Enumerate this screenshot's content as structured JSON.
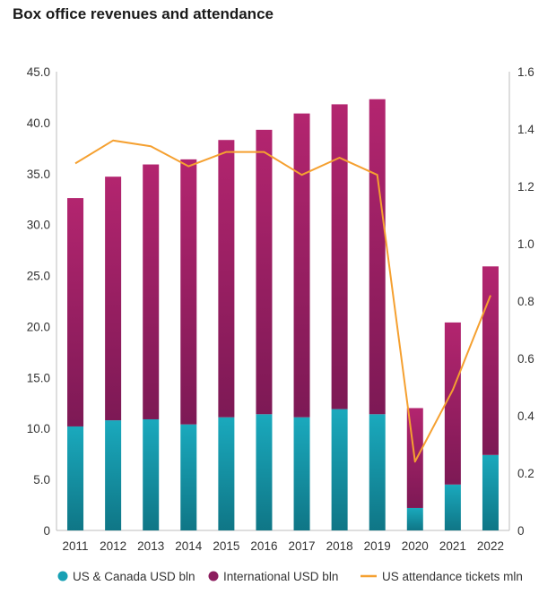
{
  "chart_data": {
    "type": "bar",
    "title": "Box office revenues and attendance",
    "categories": [
      "2011",
      "2012",
      "2013",
      "2014",
      "2015",
      "2016",
      "2017",
      "2018",
      "2019",
      "2020",
      "2021",
      "2022"
    ],
    "series": [
      {
        "name": "US & Canada USD bln",
        "type": "stacked-bar",
        "axis": "left",
        "color": "#17a0b4",
        "values": [
          10.2,
          10.8,
          10.9,
          10.4,
          11.1,
          11.4,
          11.1,
          11.9,
          11.4,
          2.2,
          4.5,
          7.4
        ]
      },
      {
        "name": "International USD bln",
        "type": "stacked-bar",
        "axis": "left",
        "color": "#8c1d5e",
        "values": [
          22.4,
          23.9,
          25.0,
          26.0,
          27.2,
          27.9,
          29.8,
          29.9,
          30.9,
          9.8,
          15.9,
          18.5
        ]
      },
      {
        "name": "US attendance tickets mln",
        "type": "line",
        "axis": "right",
        "color": "#f5a030",
        "values": [
          1.28,
          1.36,
          1.34,
          1.27,
          1.32,
          1.32,
          1.24,
          1.3,
          1.24,
          0.24,
          0.49,
          0.82
        ]
      }
    ],
    "y_left": {
      "ylim": [
        0,
        45
      ],
      "ticks": [
        "0",
        "5.0",
        "10.0",
        "15.0",
        "20.0",
        "25.0",
        "30.0",
        "35.0",
        "40.0",
        "45.0"
      ],
      "tick_values": [
        0,
        5,
        10,
        15,
        20,
        25,
        30,
        35,
        40,
        45
      ]
    },
    "y_right": {
      "ylim": [
        0,
        1.6
      ],
      "ticks": [
        "0",
        "0.2",
        "0.4",
        "0.6",
        "0.8",
        "1.0",
        "1.2",
        "1.4",
        "1.6"
      ],
      "tick_values": [
        0,
        0.2,
        0.4,
        0.6,
        0.8,
        1.0,
        1.2,
        1.4,
        1.6
      ]
    },
    "grid": false,
    "legend_position": "bottom"
  }
}
